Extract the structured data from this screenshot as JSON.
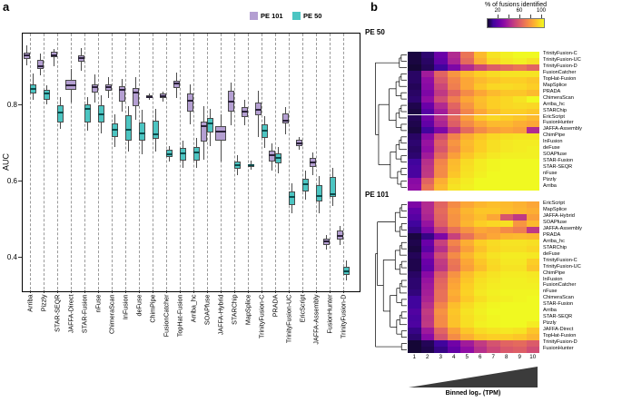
{
  "figure": {
    "panel_a_label": "a",
    "panel_b_label": "b"
  },
  "chart_data": [
    {
      "id": "auc-boxplot",
      "type": "box",
      "panel": "a",
      "ylabel": "AUC",
      "ylim": [
        0.312,
        0.983
      ],
      "grid": "dashed-vertical-per-category",
      "yticks": [
        {
          "label": "0.4",
          "value": 0.4
        },
        {
          "label": "0.6",
          "value": 0.6
        },
        {
          "label": "0.8",
          "value": 0.8
        }
      ],
      "legend_position": "top-right",
      "legend": [
        {
          "label": "PE 101",
          "color": "#b49fd2"
        },
        {
          "label": "PE 50",
          "color": "#4cc5c2"
        }
      ],
      "categories": [
        "Arriba",
        "Pizzly",
        "STAR-SEQR",
        "JAFFA-Direct",
        "STAR-Fusion",
        "nFuse",
        "ChimeraScan",
        "InFusion",
        "deFuse",
        "ChimPipe",
        "FusionCatcher",
        "TopHat-Fusion",
        "Arriba_hc",
        "SOAPfuse",
        "JAFFA-Hybrid",
        "STARChip",
        "MapSplice",
        "TrinityFusion-C",
        "PRADA",
        "TrinityFusion-UC",
        "EricScript",
        "JAFFA-Assembly",
        "FusionHunter",
        "TrinityFusion-D"
      ],
      "series": [
        {
          "name": "PE 101",
          "color": "#b49fd2",
          "median_color": "#2a2138",
          "boxes": [
            {
              "lo": 0.903,
              "q1": 0.92,
              "med": 0.928,
              "q3": 0.936,
              "hi": 0.955
            },
            {
              "lo": 0.876,
              "q1": 0.893,
              "med": 0.899,
              "q3": 0.917,
              "hi": 0.933
            },
            {
              "lo": 0.899,
              "q1": 0.924,
              "med": 0.928,
              "q3": 0.937,
              "hi": 0.945
            },
            {
              "lo": 0.805,
              "q1": 0.837,
              "med": 0.849,
              "q3": 0.864,
              "hi": 0.892
            },
            {
              "lo": 0.887,
              "q1": 0.911,
              "med": 0.921,
              "q3": 0.928,
              "hi": 0.948
            },
            {
              "lo": 0.805,
              "q1": 0.832,
              "med": 0.846,
              "q3": 0.852,
              "hi": 0.879
            },
            {
              "lo": 0.816,
              "q1": 0.836,
              "med": 0.845,
              "q3": 0.852,
              "hi": 0.872
            },
            {
              "lo": 0.781,
              "q1": 0.807,
              "med": 0.838,
              "q3": 0.847,
              "hi": 0.866
            },
            {
              "lo": 0.76,
              "q1": 0.795,
              "med": 0.83,
              "q3": 0.842,
              "hi": 0.872
            },
            {
              "lo": 0.812,
              "q1": 0.817,
              "med": 0.82,
              "q3": 0.823,
              "hi": 0.828
            },
            {
              "lo": 0.808,
              "q1": 0.816,
              "med": 0.822,
              "q3": 0.828,
              "hi": 0.833
            },
            {
              "lo": 0.816,
              "q1": 0.843,
              "med": 0.855,
              "q3": 0.862,
              "hi": 0.883
            },
            {
              "lo": 0.748,
              "q1": 0.78,
              "med": 0.81,
              "q3": 0.828,
              "hi": 0.853
            },
            {
              "lo": 0.655,
              "q1": 0.703,
              "med": 0.742,
              "q3": 0.755,
              "hi": 0.795
            },
            {
              "lo": 0.65,
              "q1": 0.705,
              "med": 0.728,
              "q3": 0.742,
              "hi": 0.775
            },
            {
              "lo": 0.745,
              "q1": 0.781,
              "med": 0.808,
              "q3": 0.836,
              "hi": 0.856
            },
            {
              "lo": 0.745,
              "q1": 0.767,
              "med": 0.781,
              "q3": 0.794,
              "hi": 0.813
            },
            {
              "lo": 0.715,
              "q1": 0.771,
              "med": 0.786,
              "q3": 0.805,
              "hi": 0.836
            },
            {
              "lo": 0.627,
              "q1": 0.65,
              "med": 0.666,
              "q3": 0.678,
              "hi": 0.698
            },
            {
              "lo": 0.722,
              "q1": 0.749,
              "med": 0.757,
              "q3": 0.777,
              "hi": 0.793
            },
            {
              "lo": 0.68,
              "q1": 0.69,
              "med": 0.698,
              "q3": 0.706,
              "hi": 0.715
            },
            {
              "lo": 0.615,
              "q1": 0.635,
              "med": 0.648,
              "q3": 0.66,
              "hi": 0.674
            },
            {
              "lo": 0.42,
              "q1": 0.432,
              "med": 0.44,
              "q3": 0.448,
              "hi": 0.458
            },
            {
              "lo": 0.43,
              "q1": 0.445,
              "med": 0.455,
              "q3": 0.468,
              "hi": 0.48
            }
          ]
        },
        {
          "name": "PE 50",
          "color": "#4cc5c2",
          "median_color": "#0d4a4a",
          "boxes": [
            {
              "lo": 0.812,
              "q1": 0.829,
              "med": 0.84,
              "q3": 0.852,
              "hi": 0.88
            },
            {
              "lo": 0.801,
              "q1": 0.813,
              "med": 0.828,
              "q3": 0.837,
              "hi": 0.849
            },
            {
              "lo": 0.735,
              "q1": 0.753,
              "med": 0.779,
              "q3": 0.797,
              "hi": 0.82
            },
            null,
            {
              "lo": 0.731,
              "q1": 0.753,
              "med": 0.789,
              "q3": 0.801,
              "hi": 0.82
            },
            {
              "lo": 0.724,
              "q1": 0.753,
              "med": 0.775,
              "q3": 0.797,
              "hi": 0.824
            },
            {
              "lo": 0.689,
              "q1": 0.715,
              "med": 0.733,
              "q3": 0.751,
              "hi": 0.773
            },
            {
              "lo": 0.675,
              "q1": 0.705,
              "med": 0.733,
              "q3": 0.772,
              "hi": 0.796
            },
            {
              "lo": 0.669,
              "q1": 0.705,
              "med": 0.725,
              "q3": 0.753,
              "hi": 0.785
            },
            {
              "lo": 0.677,
              "q1": 0.709,
              "med": 0.722,
              "q3": 0.757,
              "hi": 0.789
            },
            {
              "lo": 0.65,
              "q1": 0.662,
              "med": 0.67,
              "q3": 0.68,
              "hi": 0.69
            },
            {
              "lo": 0.633,
              "q1": 0.653,
              "med": 0.671,
              "q3": 0.685,
              "hi": 0.705
            },
            {
              "lo": 0.633,
              "q1": 0.653,
              "med": 0.675,
              "q3": 0.689,
              "hi": 0.712
            },
            {
              "lo": 0.69,
              "q1": 0.727,
              "med": 0.751,
              "q3": 0.764,
              "hi": 0.788
            },
            null,
            {
              "lo": 0.614,
              "q1": 0.63,
              "med": 0.641,
              "q3": 0.65,
              "hi": 0.666
            },
            {
              "lo": 0.628,
              "q1": 0.636,
              "med": 0.64,
              "q3": 0.644,
              "hi": 0.652
            },
            {
              "lo": 0.685,
              "q1": 0.712,
              "med": 0.73,
              "q3": 0.748,
              "hi": 0.768
            },
            {
              "lo": 0.62,
              "q1": 0.646,
              "med": 0.66,
              "q3": 0.672,
              "hi": 0.688
            },
            {
              "lo": 0.515,
              "q1": 0.535,
              "med": 0.556,
              "q3": 0.571,
              "hi": 0.594
            },
            {
              "lo": 0.551,
              "q1": 0.571,
              "med": 0.59,
              "q3": 0.604,
              "hi": 0.627
            },
            {
              "lo": 0.515,
              "q1": 0.546,
              "med": 0.56,
              "q3": 0.588,
              "hi": 0.612
            },
            {
              "lo": 0.534,
              "q1": 0.558,
              "med": 0.565,
              "q3": 0.61,
              "hi": 0.633
            },
            {
              "lo": 0.338,
              "q1": 0.352,
              "med": 0.363,
              "q3": 0.375,
              "hi": 0.39
            }
          ]
        }
      ]
    },
    {
      "id": "heatmap-pe50",
      "type": "heatmap",
      "title": "PE 50",
      "colorbar": {
        "title": "% of fusions identified",
        "tick_labels": [
          "20",
          "60",
          "100"
        ],
        "min": 0,
        "max": 100
      },
      "columns": [
        "1",
        "2",
        "3",
        "4",
        "5",
        "6",
        "7",
        "8",
        "9",
        "10"
      ],
      "rows": [
        "TrinityFusion-C",
        "TrinityFusion-UC",
        "TrinityFusion-D",
        "FusionCatcher",
        "TopHat-Fusion",
        "MapSplice",
        "PRADA",
        "ChimeraScan",
        "Arriba_hc",
        "STARChip",
        "EricScript",
        "FusionHunter",
        "JAFFA-Assembly",
        "ChimPipe",
        "InFusion",
        "deFuse",
        "SOAPfuse",
        "STAR-Fusion",
        "STAR-SEQR",
        "nFuse",
        "Pizzly",
        "Arriba"
      ],
      "values": [
        [
          2,
          6,
          20,
          40,
          65,
          85,
          95,
          98,
          100,
          100
        ],
        [
          2,
          5,
          18,
          38,
          62,
          82,
          92,
          96,
          98,
          95
        ],
        [
          1,
          4,
          10,
          25,
          40,
          50,
          58,
          62,
          65,
          60
        ],
        [
          5,
          35,
          60,
          75,
          85,
          90,
          93,
          95,
          95,
          95
        ],
        [
          5,
          30,
          55,
          70,
          80,
          85,
          88,
          90,
          90,
          88
        ],
        [
          4,
          28,
          50,
          68,
          80,
          88,
          92,
          93,
          92,
          90
        ],
        [
          5,
          25,
          45,
          60,
          72,
          80,
          85,
          88,
          88,
          85
        ],
        [
          6,
          30,
          52,
          68,
          80,
          86,
          90,
          92,
          95,
          100
        ],
        [
          3,
          20,
          40,
          60,
          75,
          85,
          90,
          92,
          93,
          92
        ],
        [
          2,
          15,
          35,
          55,
          70,
          80,
          86,
          90,
          90,
          88
        ],
        [
          4,
          22,
          42,
          62,
          78,
          88,
          92,
          90,
          88,
          85
        ],
        [
          3,
          18,
          38,
          58,
          72,
          80,
          85,
          85,
          82,
          80
        ],
        [
          2,
          10,
          25,
          45,
          62,
          72,
          78,
          80,
          78,
          40
        ],
        [
          5,
          28,
          52,
          70,
          82,
          88,
          92,
          94,
          95,
          95
        ],
        [
          6,
          32,
          58,
          75,
          85,
          90,
          94,
          96,
          97,
          97
        ],
        [
          5,
          30,
          55,
          72,
          84,
          90,
          94,
          96,
          97,
          98
        ],
        [
          6,
          35,
          62,
          78,
          88,
          93,
          96,
          98,
          98,
          98
        ],
        [
          10,
          42,
          70,
          85,
          93,
          97,
          99,
          100,
          100,
          100
        ],
        [
          12,
          44,
          72,
          86,
          94,
          97,
          99,
          100,
          100,
          100
        ],
        [
          12,
          45,
          72,
          88,
          95,
          98,
          100,
          100,
          100,
          100
        ],
        [
          28,
          60,
          82,
          93,
          97,
          100,
          100,
          100,
          100,
          100
        ],
        [
          30,
          65,
          85,
          95,
          98,
          100,
          100,
          100,
          100,
          100
        ]
      ]
    },
    {
      "id": "heatmap-pe101",
      "type": "heatmap",
      "title": "PE 101",
      "xlabel": "Binned log₂ (TPM)",
      "columns": [
        "1",
        "2",
        "3",
        "4",
        "5",
        "6",
        "7",
        "8",
        "9",
        "10"
      ],
      "rows": [
        "EricScript",
        "MapSplice",
        "JAFFA-Hybrid",
        "SOAPfuse",
        "JAFFA-Assembly",
        "PRADA",
        "Arriba_hc",
        "STARChip",
        "deFuse",
        "TrinityFusion-C",
        "TrinityFusion-UC",
        "ChimPipe",
        "InFusion",
        "FusionCatcher",
        "nFuse",
        "ChimeraScan",
        "STAR-Fusion",
        "Arriba",
        "STAR-SEQR",
        "Pizzly",
        "JAFFA-Direct",
        "TopHat-Fusion",
        "TrinityFusion-D",
        "FusionHunter"
      ],
      "values": [
        [
          25,
          40,
          60,
          72,
          80,
          84,
          86,
          85,
          83,
          80
        ],
        [
          18,
          40,
          62,
          76,
          84,
          88,
          88,
          86,
          84,
          82
        ],
        [
          15,
          38,
          60,
          74,
          82,
          86,
          80,
          55,
          45,
          78
        ],
        [
          10,
          32,
          58,
          74,
          84,
          90,
          92,
          94,
          75,
          85
        ],
        [
          8,
          25,
          48,
          64,
          74,
          80,
          78,
          72,
          68,
          45
        ],
        [
          2,
          8,
          25,
          48,
          64,
          75,
          80,
          84,
          85,
          84
        ],
        [
          3,
          20,
          48,
          70,
          82,
          90,
          93,
          95,
          95,
          94
        ],
        [
          2,
          16,
          42,
          64,
          78,
          87,
          92,
          94,
          94,
          92
        ],
        [
          4,
          25,
          52,
          72,
          84,
          91,
          95,
          97,
          97,
          96
        ],
        [
          3,
          20,
          46,
          66,
          80,
          88,
          93,
          96,
          96,
          90
        ],
        [
          3,
          18,
          44,
          64,
          78,
          86,
          92,
          95,
          95,
          88
        ],
        [
          5,
          28,
          56,
          74,
          86,
          92,
          95,
          97,
          97,
          96
        ],
        [
          6,
          32,
          60,
          78,
          88,
          94,
          96,
          98,
          98,
          97
        ],
        [
          6,
          34,
          62,
          80,
          90,
          95,
          97,
          98,
          98,
          98
        ],
        [
          7,
          36,
          64,
          82,
          91,
          96,
          98,
          99,
          99,
          99
        ],
        [
          10,
          38,
          64,
          80,
          89,
          94,
          97,
          98,
          99,
          100
        ],
        [
          10,
          42,
          70,
          86,
          93,
          97,
          99,
          100,
          100,
          100
        ],
        [
          14,
          46,
          74,
          88,
          95,
          98,
          100,
          100,
          100,
          100
        ],
        [
          12,
          44,
          72,
          87,
          94,
          97,
          99,
          100,
          100,
          100
        ],
        [
          13,
          45,
          72,
          87,
          94,
          98,
          99,
          100,
          100,
          97
        ],
        [
          8,
          34,
          60,
          78,
          88,
          93,
          95,
          96,
          95,
          88
        ],
        [
          6,
          28,
          54,
          72,
          82,
          88,
          90,
          90,
          88,
          84
        ],
        [
          1,
          4,
          10,
          22,
          35,
          46,
          54,
          60,
          62,
          57
        ],
        [
          1,
          3,
          8,
          18,
          30,
          42,
          50,
          56,
          58,
          52
        ]
      ]
    }
  ]
}
